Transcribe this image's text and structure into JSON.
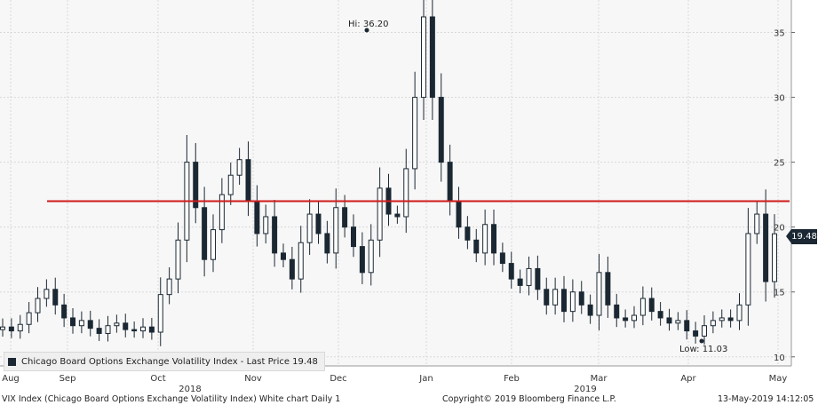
{
  "chart_data": {
    "type": "candlestick",
    "title": "VIX Index (Chicago Board Options Exchange Volatility Index) White chart Daily 1",
    "legend": [
      {
        "name": "Chicago Board Options Exchange Volatility Index - Last Price 19.48",
        "color": "#1b2833"
      }
    ],
    "y_axis": {
      "position": "right",
      "ticks": [
        10,
        15,
        20,
        25,
        30,
        35
      ],
      "ylim": [
        9.3,
        37.5
      ]
    },
    "x_axis": {
      "month_labels": [
        "Aug",
        "Sep",
        "Oct",
        "Nov",
        "Dec",
        "Jan",
        "Feb",
        "Mar",
        "Apr",
        "May"
      ],
      "year_labels": [
        "2018",
        "2019"
      ],
      "date_range": [
        "2018-08-01",
        "2019-05-13"
      ]
    },
    "horizontal_line": {
      "value": 22.0,
      "color": "#d11a1a"
    },
    "annotations": {
      "high": "Hi: 36.20",
      "low": "Low: 11.03"
    },
    "last_price": "19.48",
    "series_close_approx": [
      12.3,
      12.0,
      12.5,
      13.4,
      14.5,
      15.2,
      14.0,
      13.0,
      12.4,
      12.8,
      12.2,
      11.8,
      12.4,
      12.6,
      12.1,
      12.0,
      12.3,
      11.9,
      14.8,
      16.0,
      19.0,
      25.0,
      21.5,
      17.5,
      19.8,
      22.5,
      24.0,
      25.2,
      22.0,
      19.5,
      20.8,
      18.0,
      17.5,
      16.0,
      18.8,
      21.0,
      19.5,
      18.0,
      21.5,
      20.0,
      18.5,
      16.5,
      19.0,
      23.0,
      21.0,
      20.8,
      24.5,
      30.0,
      36.2,
      30.0,
      25.0,
      22.0,
      20.0,
      19.0,
      18.0,
      20.2,
      18.0,
      17.2,
      16.0,
      15.5,
      16.8,
      15.2,
      14.0,
      15.2,
      13.5,
      15.0,
      14.0,
      13.2,
      16.5,
      14.0,
      13.0,
      12.8,
      13.2,
      14.5,
      13.5,
      13.0,
      12.6,
      12.8,
      12.0,
      11.6,
      12.4,
      12.8,
      13.0,
      12.8,
      14.0,
      19.5,
      21.0,
      15.8,
      19.48
    ]
  },
  "footer": {
    "left": "VIX Index (Chicago Board Options Exchange Volatility Index) White chart  Daily 1",
    "center": "Copyright© 2019 Bloomberg Finance L.P.",
    "right": "13-May-2019 14:12:05"
  }
}
